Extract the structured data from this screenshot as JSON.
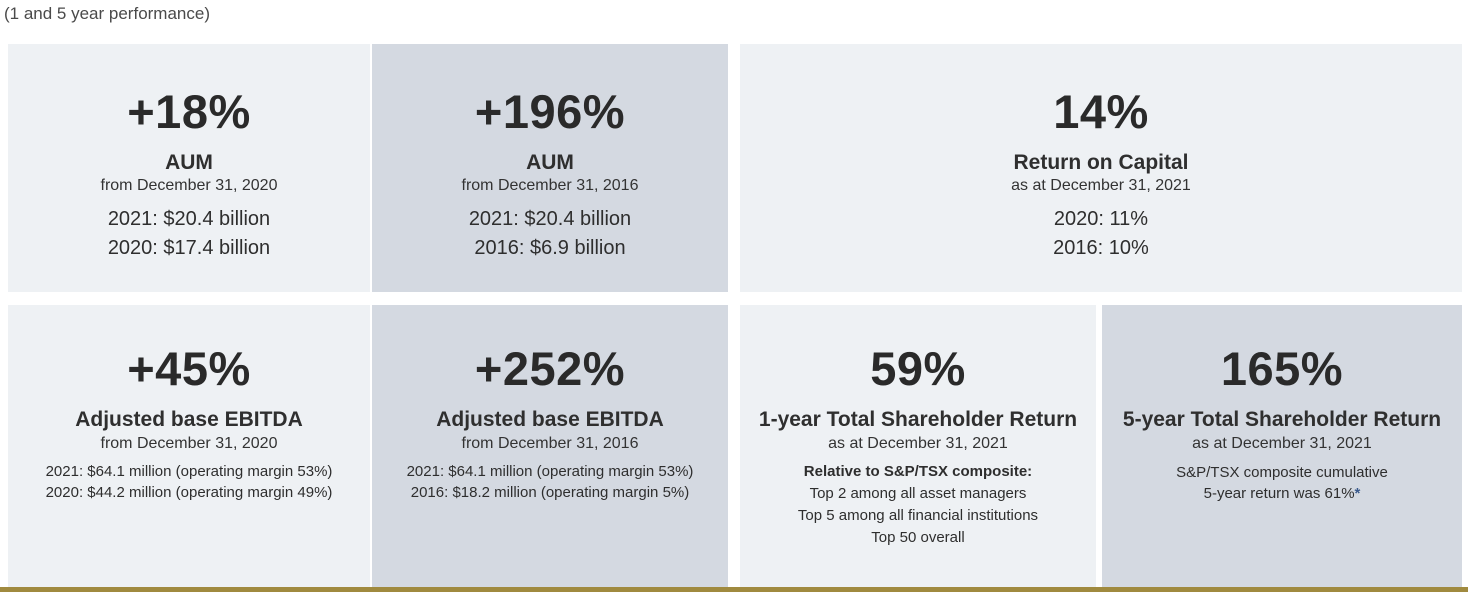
{
  "subtitle": "(1 and 5 year performance)",
  "colors": {
    "light_panel": "#eef1f4",
    "dark_panel": "#d4d9e1",
    "gold_rule": "#a08a3f",
    "asterisk": "#3a5a8c"
  },
  "cards": [
    {
      "value": "+18%",
      "heading": "AUM",
      "sub": "from December 31, 2020",
      "lines": [
        "2021: $20.4 billion",
        "2020: $17.4 billion"
      ]
    },
    {
      "value": "+196%",
      "heading": "AUM",
      "sub": "from December 31, 2016",
      "lines": [
        "2021: $20.4 billion",
        "2016: $6.9 billion"
      ]
    },
    {
      "value": "14%",
      "heading": "Return on Capital",
      "sub": "as at December 31, 2021",
      "lines": [
        "2020: 11%",
        "2016: 10%"
      ]
    },
    {
      "value": "+45%",
      "heading": "Adjusted base EBITDA",
      "sub": "from December 31, 2020",
      "lines": [
        "2021: $64.1 million (operating margin 53%)",
        "2020: $44.2 million (operating margin 49%)"
      ]
    },
    {
      "value": "+252%",
      "heading": "Adjusted base EBITDA",
      "sub": "from December 31, 2016",
      "lines": [
        "2021: $64.1 million (operating margin 53%)",
        "2016: $18.2 million (operating margin 5%)"
      ]
    },
    {
      "value": "59%",
      "heading": "1-year Total Shareholder Return",
      "sub": "as at December 31, 2021",
      "bold_line": "Relative to S&P/TSX composite:",
      "lines": [
        "Top 2 among all asset managers",
        "Top 5 among all financial institutions",
        "Top 50 overall"
      ]
    },
    {
      "value": "165%",
      "heading": "5-year Total Shareholder Return",
      "sub": "as at December 31, 2021",
      "lines": [
        "S&P/TSX composite cumulative",
        "5-year return was 61%"
      ],
      "footnote_mark": "*"
    }
  ]
}
